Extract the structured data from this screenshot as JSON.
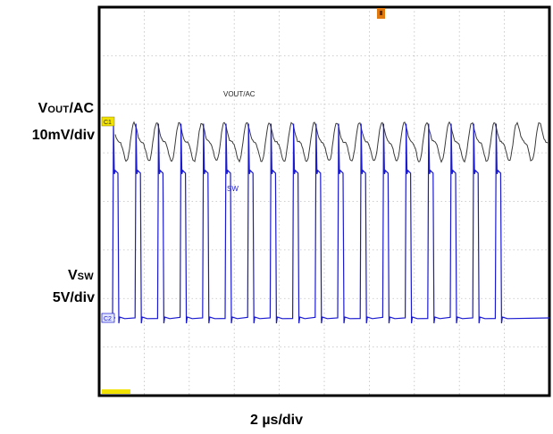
{
  "chart_data": {
    "type": "line",
    "title": "",
    "grid": true,
    "divisions": {
      "horizontal": 10,
      "vertical": 8
    },
    "time_scale": "2 µs/div",
    "switching_period_us": 1.0,
    "series": [
      {
        "name": "VOUT/AC",
        "channel": "C1",
        "color": "#3a3a3a",
        "scale": "10mV/div",
        "waveform": "ripple",
        "ripple_amplitude_div": 0.35
      },
      {
        "name": "SW",
        "channel": "C2",
        "color": "#1a1ad0",
        "scale": "5V/div",
        "waveform": "switching",
        "low_level_V": 0,
        "high_level_V": 15,
        "spike_V": 20,
        "pulse_count": 18
      }
    ]
  },
  "labels": {
    "vout_main": "V",
    "vout_sub": "OUT",
    "vout_tail": "/AC",
    "vout_scale": "10mV/div",
    "vsw_main": "V",
    "vsw_sub": "SW",
    "vsw_scale": "5V/div",
    "time_scale": "2 µs/div",
    "trace1_name": "VOUT/AC",
    "trace2_name": "SW",
    "ch1_marker": "C1",
    "ch2_marker": "C2"
  },
  "colors": {
    "grid": "#bfbfbf",
    "frame": "#000000",
    "trigger": "#e07a10",
    "bottom_marker": "#f2e200"
  }
}
